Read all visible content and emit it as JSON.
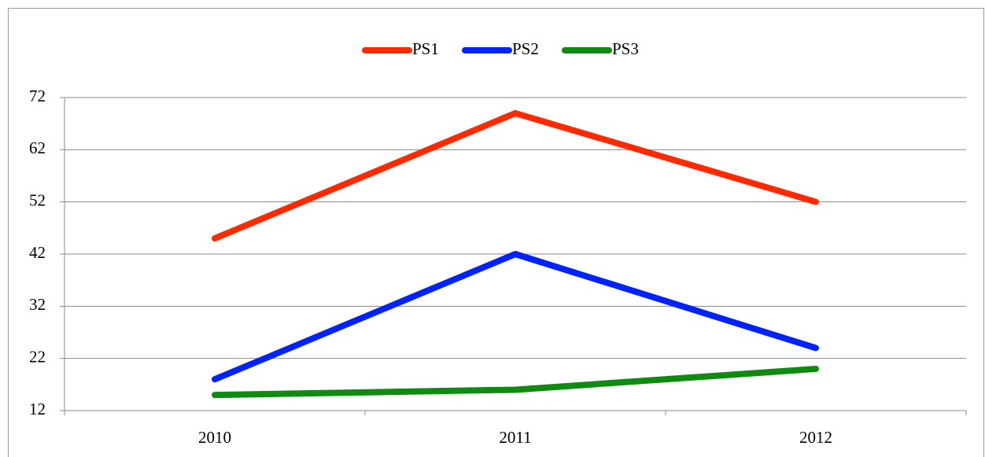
{
  "chart_data": {
    "type": "line",
    "categories": [
      "2010",
      "2011",
      "2012"
    ],
    "series": [
      {
        "name": "PS1",
        "color": "#ff2a00",
        "values": [
          45,
          69,
          52
        ]
      },
      {
        "name": "PS2",
        "color": "#0022ff",
        "values": [
          18,
          42,
          24
        ]
      },
      {
        "name": "PS3",
        "color": "#118a11",
        "values": [
          15,
          16,
          20
        ]
      }
    ],
    "ylim": [
      12,
      72
    ],
    "yticks": [
      12,
      22,
      32,
      42,
      52,
      62,
      72
    ],
    "grid": true,
    "legend": "top"
  }
}
